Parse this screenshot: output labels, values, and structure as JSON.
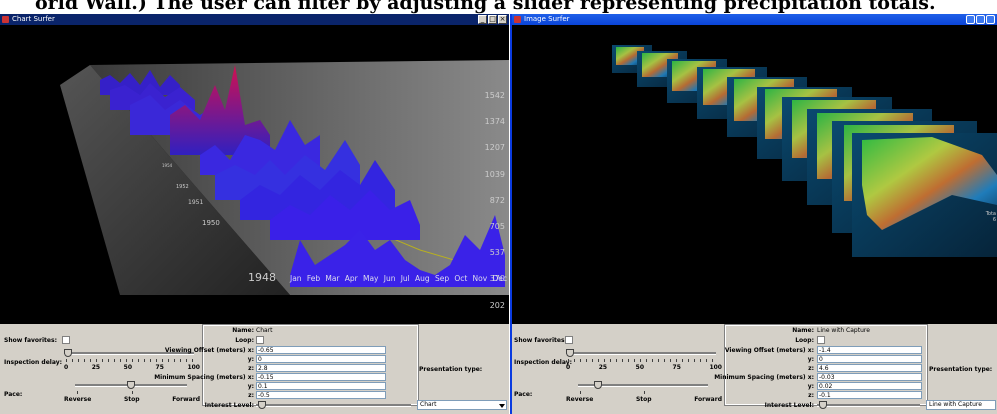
{
  "caption": "orld Wall.) The user can filter by adjusting a slider representing precipitation totals.",
  "left_window": {
    "title": "Chart Surfer",
    "buttons": [
      "_",
      "□",
      "×"
    ],
    "chart": {
      "y_ticks": [
        "1542",
        "1374",
        "1207",
        "1039",
        "872",
        "705",
        "537",
        "370",
        "202"
      ],
      "x_ticks": [
        "Jan",
        "Feb",
        "Mar",
        "Apr",
        "May",
        "Jun",
        "Jul",
        "Aug",
        "Sep",
        "Oct",
        "Nov",
        "Dec"
      ],
      "years": [
        "1948",
        "1950",
        "1951",
        "1952",
        "1954"
      ]
    },
    "panel": {
      "show_favorites": "Show favorites:",
      "inspection_delay": "Inspection delay:",
      "delay_ticks": [
        "0",
        "25",
        "50",
        "75",
        "100"
      ],
      "pace": "Pace:",
      "pace_labels": [
        "Reverse",
        "Stop",
        "Forward"
      ],
      "name_label": "Name:",
      "name_value": "Chart",
      "loop_label": "Loop:",
      "offset_label": "Viewing Offset (meters) x:",
      "offset_x": "-0.65",
      "y_label": "y:",
      "offset_y": "0",
      "z_label": "z:",
      "offset_z": "2.8",
      "spacing_label": "Minimum Spacing (meters) x:",
      "spacing_x": "-0.15",
      "spacing_y": "0.1",
      "spacing_z": "-0.5",
      "interest_label": "Interest Level:",
      "presentation_label": "Presentation type:",
      "presentation_value": "Chart"
    }
  },
  "right_window": {
    "title": "Image Surfer",
    "side_text": [
      "Tota",
      "6"
    ],
    "panel": {
      "show_favorites": "Show favorites:",
      "inspection_delay": "Inspection delay:",
      "delay_ticks": [
        "0",
        "25",
        "50",
        "75",
        "100"
      ],
      "pace": "Pace:",
      "pace_labels": [
        "Reverse",
        "Stop",
        "Forward"
      ],
      "name_label": "Name:",
      "name_value": "Line with Capture",
      "loop_label": "Loop:",
      "offset_label": "Viewing Offset (meters) x:",
      "offset_x": "-1.4",
      "y_label": "y:",
      "offset_y": "0",
      "z_label": "z:",
      "offset_z": "4.6",
      "spacing_label": "Minimum Spacing (meters) x:",
      "spacing_x": "-0.03",
      "spacing_y": "0.02",
      "spacing_z": "-0.1",
      "interest_label": "Interest Level:",
      "presentation_label": "Presentation type:",
      "presentation_value": "Line with Capture"
    }
  }
}
